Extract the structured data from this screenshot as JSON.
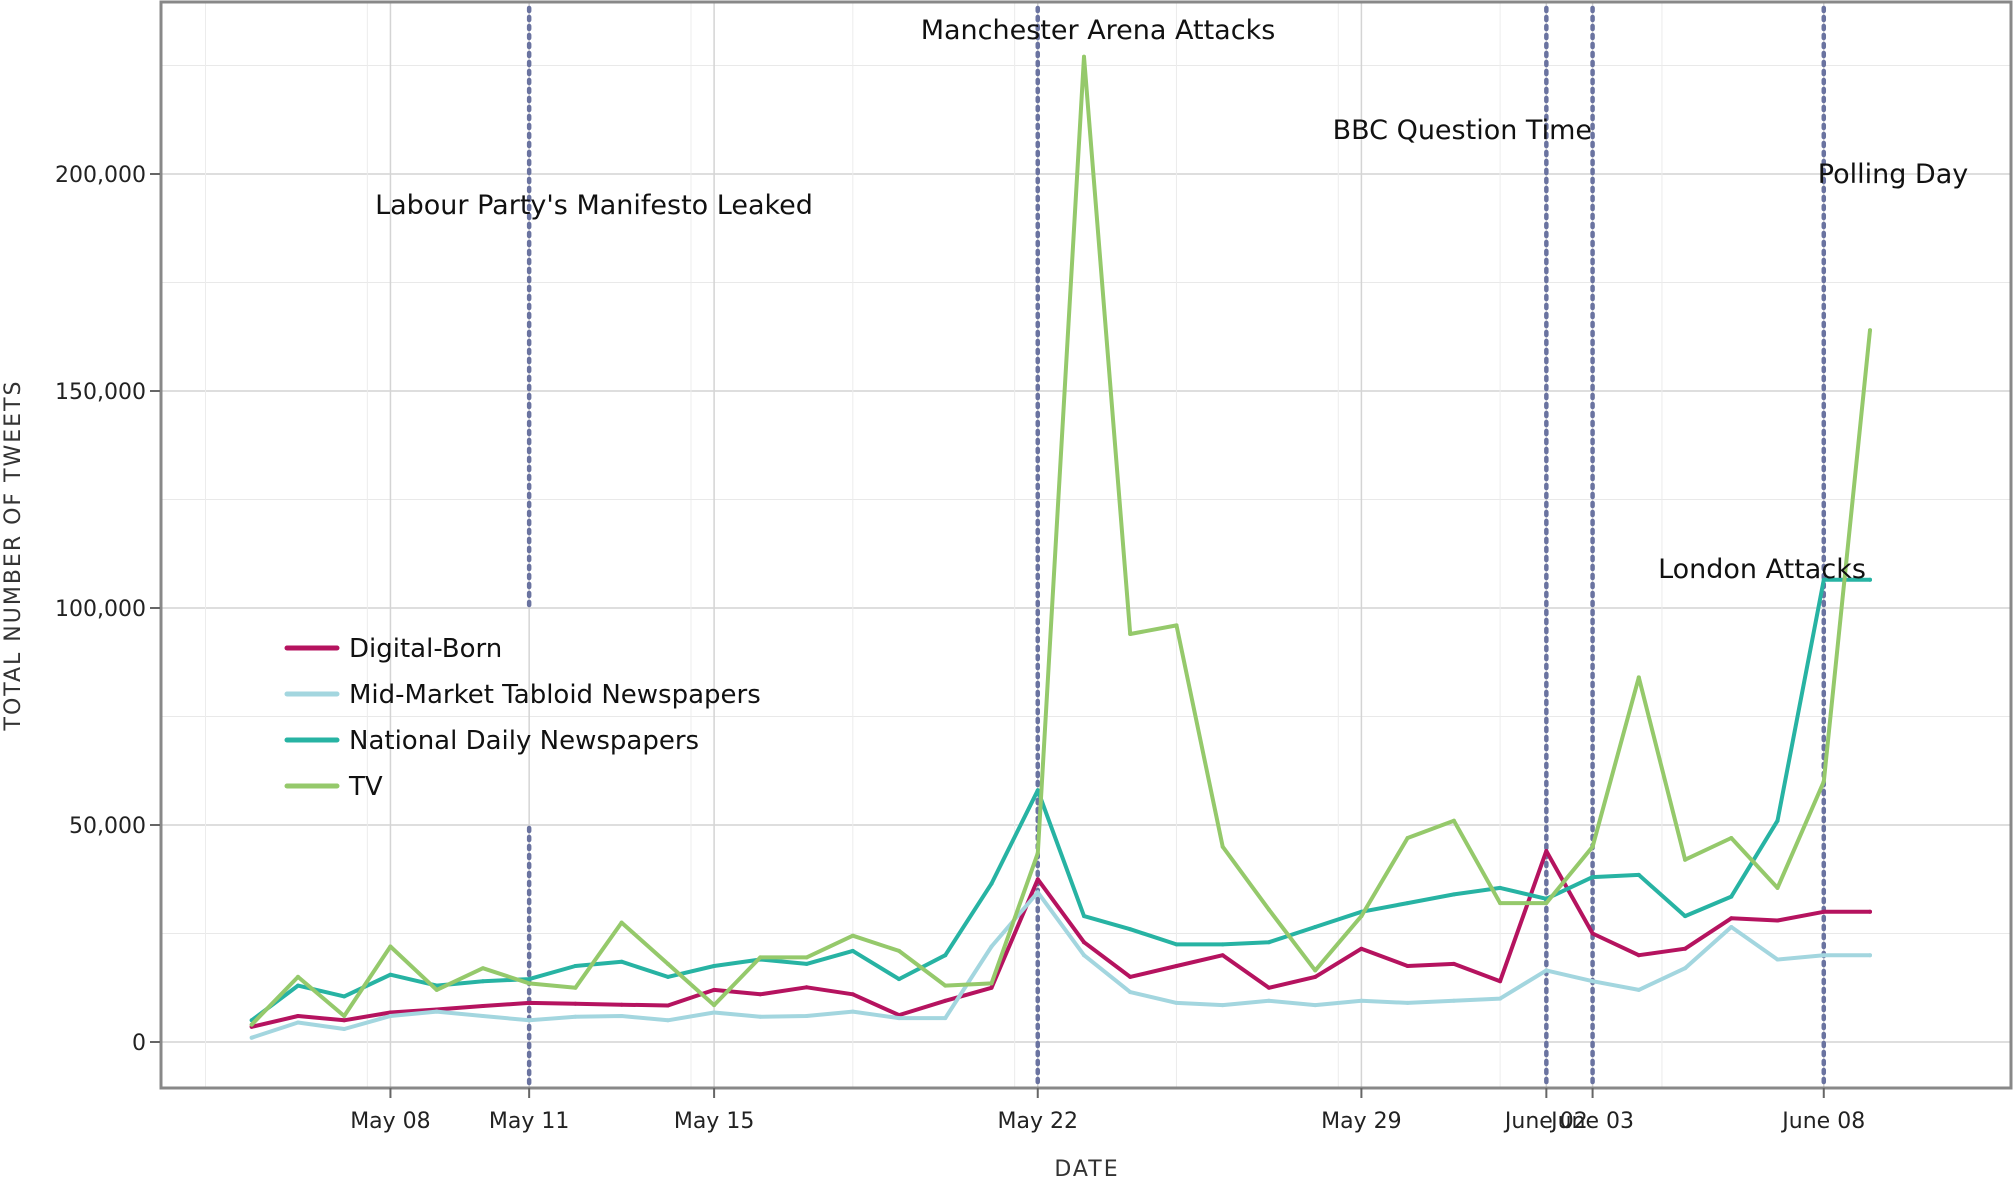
{
  "chart_data": {
    "type": "line",
    "xlabel": "DATE",
    "ylabel": "TOTAL NUMBER OF TWEETS",
    "ylim": [
      0,
      230000
    ],
    "xlim": [
      "2017-05-04",
      "2017-06-09"
    ],
    "grid": true,
    "legend": "middle-left",
    "y_ticks": [
      0,
      50000,
      100000,
      150000,
      200000
    ],
    "y_tick_labels": [
      "0",
      "50,000",
      "100,000",
      "150,000",
      "200,000"
    ],
    "x_ticks": [
      {
        "date": "2017-05-08",
        "label": "May 08"
      },
      {
        "date": "2017-05-11",
        "label": "May 11"
      },
      {
        "date": "2017-05-15",
        "label": "May 15"
      },
      {
        "date": "2017-05-22",
        "label": "May 22"
      },
      {
        "date": "2017-05-29",
        "label": "May 29"
      },
      {
        "date": "2017-06-02",
        "label": "June 02"
      },
      {
        "date": "2017-06-03",
        "label": "June 03"
      },
      {
        "date": "2017-06-08",
        "label": "June 08"
      }
    ],
    "annotations": [
      {
        "date": "2017-05-11",
        "label": "Labour Party's Manifesto Leaked"
      },
      {
        "date": "2017-05-22",
        "label": "Manchester Arena Attacks"
      },
      {
        "date": "2017-06-02",
        "label": "BBC Question Time"
      },
      {
        "date": "2017-06-03",
        "label": "London Attacks"
      },
      {
        "date": "2017-06-08",
        "label": "Polling Day"
      }
    ],
    "x": [
      "2017-05-05",
      "2017-05-06",
      "2017-05-07",
      "2017-05-08",
      "2017-05-09",
      "2017-05-10",
      "2017-05-11",
      "2017-05-12",
      "2017-05-13",
      "2017-05-14",
      "2017-05-15",
      "2017-05-16",
      "2017-05-17",
      "2017-05-18",
      "2017-05-19",
      "2017-05-20",
      "2017-05-21",
      "2017-05-22",
      "2017-05-23",
      "2017-05-24",
      "2017-05-25",
      "2017-05-26",
      "2017-05-27",
      "2017-05-28",
      "2017-05-29",
      "2017-05-30",
      "2017-05-31",
      "2017-06-01",
      "2017-06-02",
      "2017-06-03",
      "2017-06-04",
      "2017-06-05",
      "2017-06-06",
      "2017-06-07",
      "2017-06-08",
      "2017-06-09"
    ],
    "series": [
      {
        "name": "Digital-Born",
        "color": "#b5135f",
        "values": [
          3500,
          6000,
          5000,
          6800,
          7500,
          8300,
          9000,
          8800,
          8600,
          8400,
          12000,
          11000,
          12600,
          11000,
          6200,
          9500,
          12500,
          37500,
          23000,
          15000,
          17500,
          20000,
          12500,
          15000,
          21500,
          17500,
          18000,
          14000,
          44000,
          25000,
          20000,
          21500,
          28500,
          28000,
          30000,
          30000
        ]
      },
      {
        "name": "Mid-Market Tabloid Newspapers",
        "color": "#a3d6df",
        "values": [
          1000,
          4500,
          3000,
          6000,
          7000,
          6000,
          5000,
          5800,
          6000,
          5000,
          6800,
          5800,
          6000,
          7000,
          5500,
          5500,
          22000,
          34500,
          20000,
          11500,
          9000,
          8500,
          9500,
          8500,
          9500,
          9000,
          9500,
          10000,
          16500,
          14000,
          12000,
          17000,
          26500,
          19000,
          20000,
          20000
        ]
      },
      {
        "name": "National Daily Newspapers",
        "color": "#27b3a3",
        "values": [
          5000,
          13000,
          10500,
          15500,
          13000,
          14000,
          14500,
          17500,
          18500,
          15000,
          17500,
          19000,
          18000,
          21000,
          14500,
          20000,
          36500,
          58000,
          29000,
          26000,
          22500,
          22500,
          23000,
          26500,
          30000,
          32000,
          34000,
          35500,
          33000,
          38000,
          38500,
          29000,
          33500,
          51000,
          106500,
          106500
        ]
      },
      {
        "name": "TV",
        "color": "#95c96b",
        "values": [
          4000,
          15000,
          6000,
          22000,
          12000,
          17000,
          13500,
          12500,
          27500,
          18000,
          8500,
          19500,
          19500,
          24500,
          21000,
          13000,
          13500,
          43500,
          227000,
          94000,
          96000,
          45000,
          30500,
          16500,
          29000,
          47000,
          51000,
          32000,
          32000,
          45000,
          84000,
          42000,
          47000,
          35500,
          60000,
          164000
        ]
      }
    ]
  }
}
